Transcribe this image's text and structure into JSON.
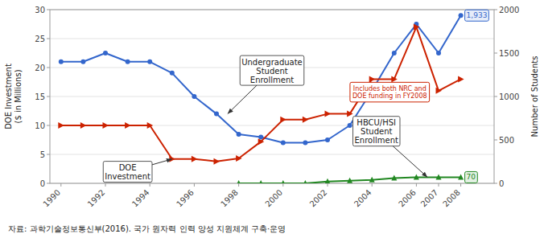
{
  "chart_data": {
    "type": "line",
    "ylabel": "DOE Investment\n($ in Millions)",
    "y2label": "Number of Students",
    "source": "자료: 과학기술정보통신부(2016). 국가 원자력 인력 양성 지원체계 구축·운영",
    "xlim": [
      1989.5,
      2009.5
    ],
    "xticks": [
      1990,
      1992,
      1994,
      1996,
      1998,
      2000,
      2002,
      2004,
      2006,
      2007,
      2008
    ],
    "ylim": [
      0,
      30
    ],
    "yticks": [
      0,
      5,
      10,
      15,
      20,
      25,
      30
    ],
    "y2lim": [
      0,
      2000
    ],
    "y2ticks": [
      0,
      500,
      1000,
      1500,
      2000
    ],
    "grid": true,
    "series": [
      {
        "x": [
          1990,
          1991,
          1992,
          1993,
          1994,
          1995,
          1996,
          1997,
          1998,
          1999,
          2000,
          2001,
          2002,
          2003,
          2004,
          2005,
          2006,
          2007,
          2008
        ],
        "values": [
          1400,
          1400,
          1500,
          1400,
          1400,
          1270,
          1000,
          800,
          565,
          533,
          467,
          467,
          500,
          667,
          1067,
          1500,
          1833,
          1500,
          1933
        ],
        "color": "#3366CC",
        "marker": "circle",
        "axis": "y2"
      },
      {
        "x": [
          1990,
          1991,
          1992,
          1993,
          1994,
          1995,
          1996,
          1997,
          1998,
          1999,
          2000,
          2001,
          2002,
          2003,
          2004,
          2005,
          2006,
          2007,
          2008
        ],
        "values": [
          10,
          10,
          10,
          10,
          10,
          4.2,
          4.2,
          3.8,
          4.3,
          7.2,
          11.0,
          11.0,
          12.0,
          12.0,
          18.0,
          18.0,
          27.0,
          16.0,
          18.0
        ],
        "color": "#CC2200",
        "marker": "triangle-right",
        "axis": "y"
      },
      {
        "x": [
          1998,
          1999,
          2000,
          2001,
          2002,
          2003,
          2004,
          2005,
          2006,
          2007,
          2008
        ],
        "values": [
          0,
          0,
          0,
          0,
          20,
          30,
          40,
          60,
          70,
          70,
          70
        ],
        "color": "#228822",
        "marker": "triangle-up",
        "axis": "y2"
      }
    ],
    "point_labels": [
      {
        "text": "1,933",
        "x": 2008,
        "y": 1933,
        "axis": "y2",
        "color": "#3366CC"
      },
      {
        "text": "70",
        "x": 2008,
        "y": 70,
        "axis": "y2",
        "color": "#228822"
      }
    ],
    "annotations": [
      {
        "text": "Undergraduate\nStudent\nEnrollment",
        "x": 1999.5,
        "y": 1300,
        "arrow_x": 1997.5,
        "arrow_y": 800,
        "axis": "y2"
      },
      {
        "text": "DOE\nInvestment",
        "x": 1993,
        "y": 2.0,
        "arrow_x": 1995,
        "arrow_y": 4.2,
        "axis": "y"
      },
      {
        "text": "HBCU/HSI\nStudent\nEnrollment",
        "x": 2004.2,
        "y": 600,
        "arrow_x": 2006.5,
        "arrow_y": 70,
        "axis": "y2"
      }
    ],
    "note": {
      "text": "Includes both NRC and\nDOE funding in FY2008",
      "x": 2004.8,
      "y": 1050,
      "axis": "y2",
      "color": "#CC2200"
    }
  }
}
